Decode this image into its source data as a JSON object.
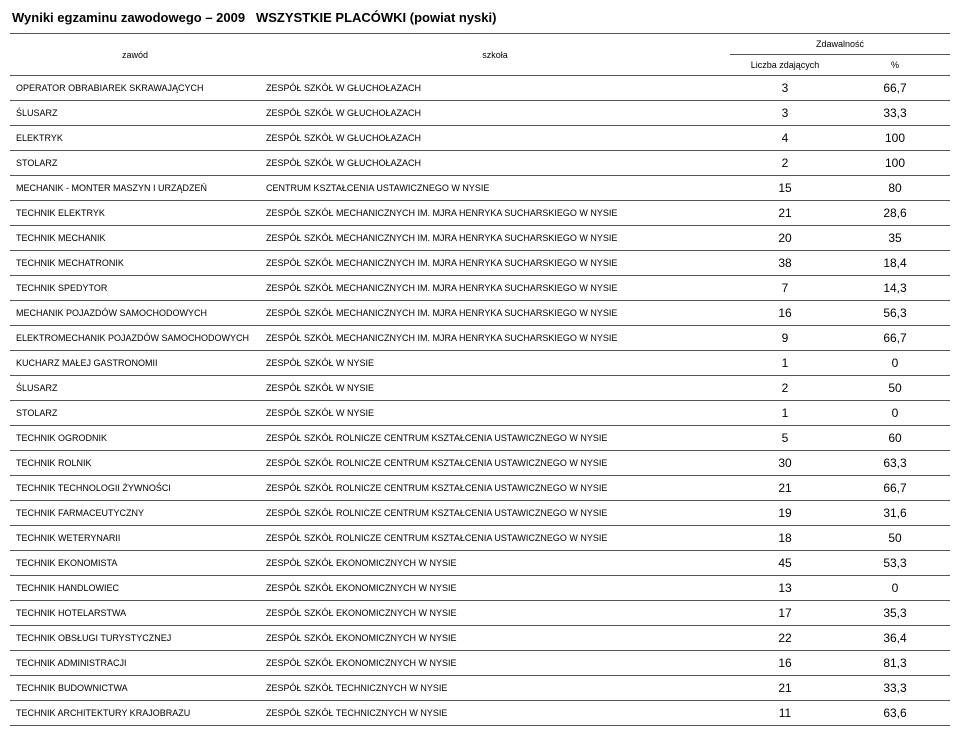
{
  "title_prefix": "Wyniki egzaminu zawodowego – 2009",
  "title_suffix": "WSZYSTKIE PLACÓWKI (powiat nyski)",
  "headers": {
    "zawod": "zawód",
    "szkola": "szkoła",
    "zdawalnosc": "Zdawalność",
    "liczba": "Liczba zdających",
    "percent": "%"
  },
  "rows": [
    {
      "zawod": "OPERATOR OBRABIAREK SKRAWAJĄCYCH",
      "szkola": "ZESPÓŁ SZKÓŁ W GŁUCHOŁAZACH",
      "n": "3",
      "p": "66,7"
    },
    {
      "zawod": "ŚLUSARZ",
      "szkola": "ZESPÓŁ SZKÓŁ W GŁUCHOŁAZACH",
      "n": "3",
      "p": "33,3"
    },
    {
      "zawod": "ELEKTRYK",
      "szkola": "ZESPÓŁ SZKÓŁ W GŁUCHOŁAZACH",
      "n": "4",
      "p": "100"
    },
    {
      "zawod": "STOLARZ",
      "szkola": "ZESPÓŁ SZKÓŁ W GŁUCHOŁAZACH",
      "n": "2",
      "p": "100"
    },
    {
      "zawod": "MECHANIK - MONTER MASZYN I URZĄDZEŃ",
      "szkola": "CENTRUM KSZTAŁCENIA USTAWICZNEGO W NYSIE",
      "n": "15",
      "p": "80"
    },
    {
      "zawod": "TECHNIK ELEKTRYK",
      "szkola": "ZESPÓŁ SZKÓŁ MECHANICZNYCH IM. MJRA HENRYKA SUCHARSKIEGO W NYSIE",
      "n": "21",
      "p": "28,6"
    },
    {
      "zawod": "TECHNIK MECHANIK",
      "szkola": "ZESPÓŁ SZKÓŁ MECHANICZNYCH IM. MJRA HENRYKA SUCHARSKIEGO W NYSIE",
      "n": "20",
      "p": "35"
    },
    {
      "zawod": "TECHNIK MECHATRONIK",
      "szkola": "ZESPÓŁ SZKÓŁ MECHANICZNYCH IM. MJRA HENRYKA SUCHARSKIEGO W NYSIE",
      "n": "38",
      "p": "18,4"
    },
    {
      "zawod": "TECHNIK SPEDYTOR",
      "szkola": "ZESPÓŁ SZKÓŁ MECHANICZNYCH IM. MJRA HENRYKA SUCHARSKIEGO W NYSIE",
      "n": "7",
      "p": "14,3"
    },
    {
      "zawod": "MECHANIK POJAZDÓW SAMOCHODOWYCH",
      "szkola": "ZESPÓŁ SZKÓŁ MECHANICZNYCH IM. MJRA HENRYKA SUCHARSKIEGO W NYSIE",
      "n": "16",
      "p": "56,3"
    },
    {
      "zawod": "ELEKTROMECHANIK POJAZDÓW SAMOCHODOWYCH",
      "szkola": "ZESPÓŁ SZKÓŁ MECHANICZNYCH IM. MJRA HENRYKA SUCHARSKIEGO W NYSIE",
      "n": "9",
      "p": "66,7"
    },
    {
      "zawod": "KUCHARZ MAŁEJ GASTRONOMII",
      "szkola": "ZESPÓŁ SZKÓŁ W NYSIE",
      "n": "1",
      "p": "0"
    },
    {
      "zawod": "ŚLUSARZ",
      "szkola": "ZESPÓŁ SZKÓŁ W NYSIE",
      "n": "2",
      "p": "50"
    },
    {
      "zawod": "STOLARZ",
      "szkola": "ZESPÓŁ SZKÓŁ W NYSIE",
      "n": "1",
      "p": "0"
    },
    {
      "zawod": "TECHNIK OGRODNIK",
      "szkola": "ZESPÓŁ SZKÓŁ ROLNICZE CENTRUM KSZTAŁCENIA USTAWICZNEGO W NYSIE",
      "n": "5",
      "p": "60"
    },
    {
      "zawod": "TECHNIK ROLNIK",
      "szkola": "ZESPÓŁ SZKÓŁ ROLNICZE CENTRUM KSZTAŁCENIA USTAWICZNEGO W NYSIE",
      "n": "30",
      "p": "63,3"
    },
    {
      "zawod": "TECHNIK TECHNOLOGII ŻYWNOŚCI",
      "szkola": "ZESPÓŁ SZKÓŁ ROLNICZE CENTRUM KSZTAŁCENIA USTAWICZNEGO W NYSIE",
      "n": "21",
      "p": "66,7"
    },
    {
      "zawod": "TECHNIK FARMACEUTYCZNY",
      "szkola": "ZESPÓŁ SZKÓŁ ROLNICZE CENTRUM KSZTAŁCENIA USTAWICZNEGO W NYSIE",
      "n": "19",
      "p": "31,6"
    },
    {
      "zawod": "TECHNIK WETERYNARII",
      "szkola": "ZESPÓŁ SZKÓŁ ROLNICZE CENTRUM KSZTAŁCENIA USTAWICZNEGO W NYSIE",
      "n": "18",
      "p": "50"
    },
    {
      "zawod": "TECHNIK EKONOMISTA",
      "szkola": "ZESPÓŁ SZKÓŁ EKONOMICZNYCH W NYSIE",
      "n": "45",
      "p": "53,3"
    },
    {
      "zawod": "TECHNIK HANDLOWIEC",
      "szkola": "ZESPÓŁ SZKÓŁ EKONOMICZNYCH W NYSIE",
      "n": "13",
      "p": "0"
    },
    {
      "zawod": "TECHNIK HOTELARSTWA",
      "szkola": "ZESPÓŁ SZKÓŁ EKONOMICZNYCH W NYSIE",
      "n": "17",
      "p": "35,3"
    },
    {
      "zawod": "TECHNIK OBSŁUGI TURYSTYCZNEJ",
      "szkola": "ZESPÓŁ SZKÓŁ EKONOMICZNYCH W NYSIE",
      "n": "22",
      "p": "36,4"
    },
    {
      "zawod": "TECHNIK ADMINISTRACJI",
      "szkola": "ZESPÓŁ SZKÓŁ EKONOMICZNYCH W NYSIE",
      "n": "16",
      "p": "81,3"
    },
    {
      "zawod": "TECHNIK BUDOWNICTWA",
      "szkola": "ZESPÓŁ SZKÓŁ TECHNICZNYCH W NYSIE",
      "n": "21",
      "p": "33,3"
    },
    {
      "zawod": "TECHNIK ARCHITEKTURY KRAJOBRAZU",
      "szkola": "ZESPÓŁ SZKÓŁ TECHNICZNYCH W NYSIE",
      "n": "11",
      "p": "63,6"
    }
  ]
}
